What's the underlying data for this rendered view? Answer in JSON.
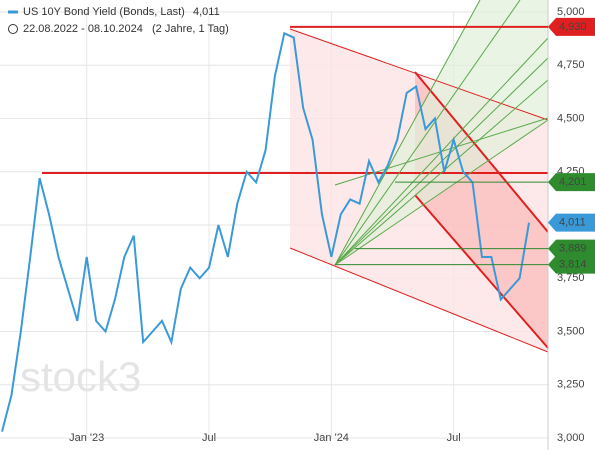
{
  "header": {
    "title": "US 10Y Bond Yield (Bonds, Last)",
    "last": "4,011",
    "range": "22.08.2022 - 08.10.2024",
    "span": "(2 Jahre, 1 Tag)"
  },
  "watermark": "stock3",
  "chart_data": {
    "type": "line",
    "categories": [
      null,
      null,
      null,
      null,
      null,
      null,
      null,
      null,
      null,
      "Jan '23",
      null,
      null,
      null,
      null,
      null,
      null,
      null,
      null,
      null,
      null,
      null,
      null,
      "Jul",
      null,
      null,
      null,
      null,
      null,
      null,
      null,
      null,
      null,
      null,
      null,
      null,
      "Jan '24",
      null,
      null,
      null,
      null,
      null,
      null,
      null,
      null,
      null,
      null,
      null,
      null,
      "Jul",
      null,
      null,
      null,
      null,
      null,
      null,
      null,
      null
    ],
    "series": [
      {
        "name": "US 10Y Bond Yield (Bonds, Last)",
        "color": "#3a9ad9",
        "values": [
          3.03,
          3.2,
          3.5,
          3.85,
          4.22,
          4.05,
          3.85,
          3.7,
          3.55,
          3.85,
          3.55,
          3.5,
          3.65,
          3.85,
          3.95,
          3.45,
          3.5,
          3.55,
          3.45,
          3.7,
          3.8,
          3.75,
          3.8,
          4.0,
          3.85,
          4.1,
          4.25,
          4.2,
          4.35,
          4.7,
          4.9,
          4.88,
          4.55,
          4.4,
          4.05,
          3.85,
          4.05,
          4.12,
          4.1,
          4.3,
          4.2,
          4.28,
          4.4,
          4.62,
          4.65,
          4.45,
          4.5,
          4.25,
          4.4,
          4.25,
          4.2,
          3.85,
          3.85,
          3.65,
          3.7,
          3.75,
          4.011
        ]
      }
    ],
    "ylim": [
      3,
      5
    ],
    "yticks": [
      {
        "value": 3,
        "label": "3,000"
      },
      {
        "value": 3.25,
        "label": "3,250"
      },
      {
        "value": 3.5,
        "label": "3,500"
      },
      {
        "value": 3.75,
        "label": "3,750"
      },
      {
        "value": 4,
        "label": "4,000"
      },
      {
        "value": 4.25,
        "label": "4,250"
      },
      {
        "value": 4.5,
        "label": "4,500"
      },
      {
        "value": 4.75,
        "label": "4,750"
      },
      {
        "value": 5,
        "label": "5,000"
      }
    ],
    "grid": true,
    "price_labels": [
      {
        "value": 4.93,
        "label": "4,930",
        "color": "#e02020"
      },
      {
        "value": 4.201,
        "label": "4,201",
        "color": "#2e8b2e"
      },
      {
        "value": 4.011,
        "label": "4,011",
        "color": "#3a9ad9"
      },
      {
        "value": 3.889,
        "label": "3,889",
        "color": "#2e8b2e"
      },
      {
        "value": 3.814,
        "label": "3,814",
        "color": "#2e8b2e"
      }
    ]
  }
}
